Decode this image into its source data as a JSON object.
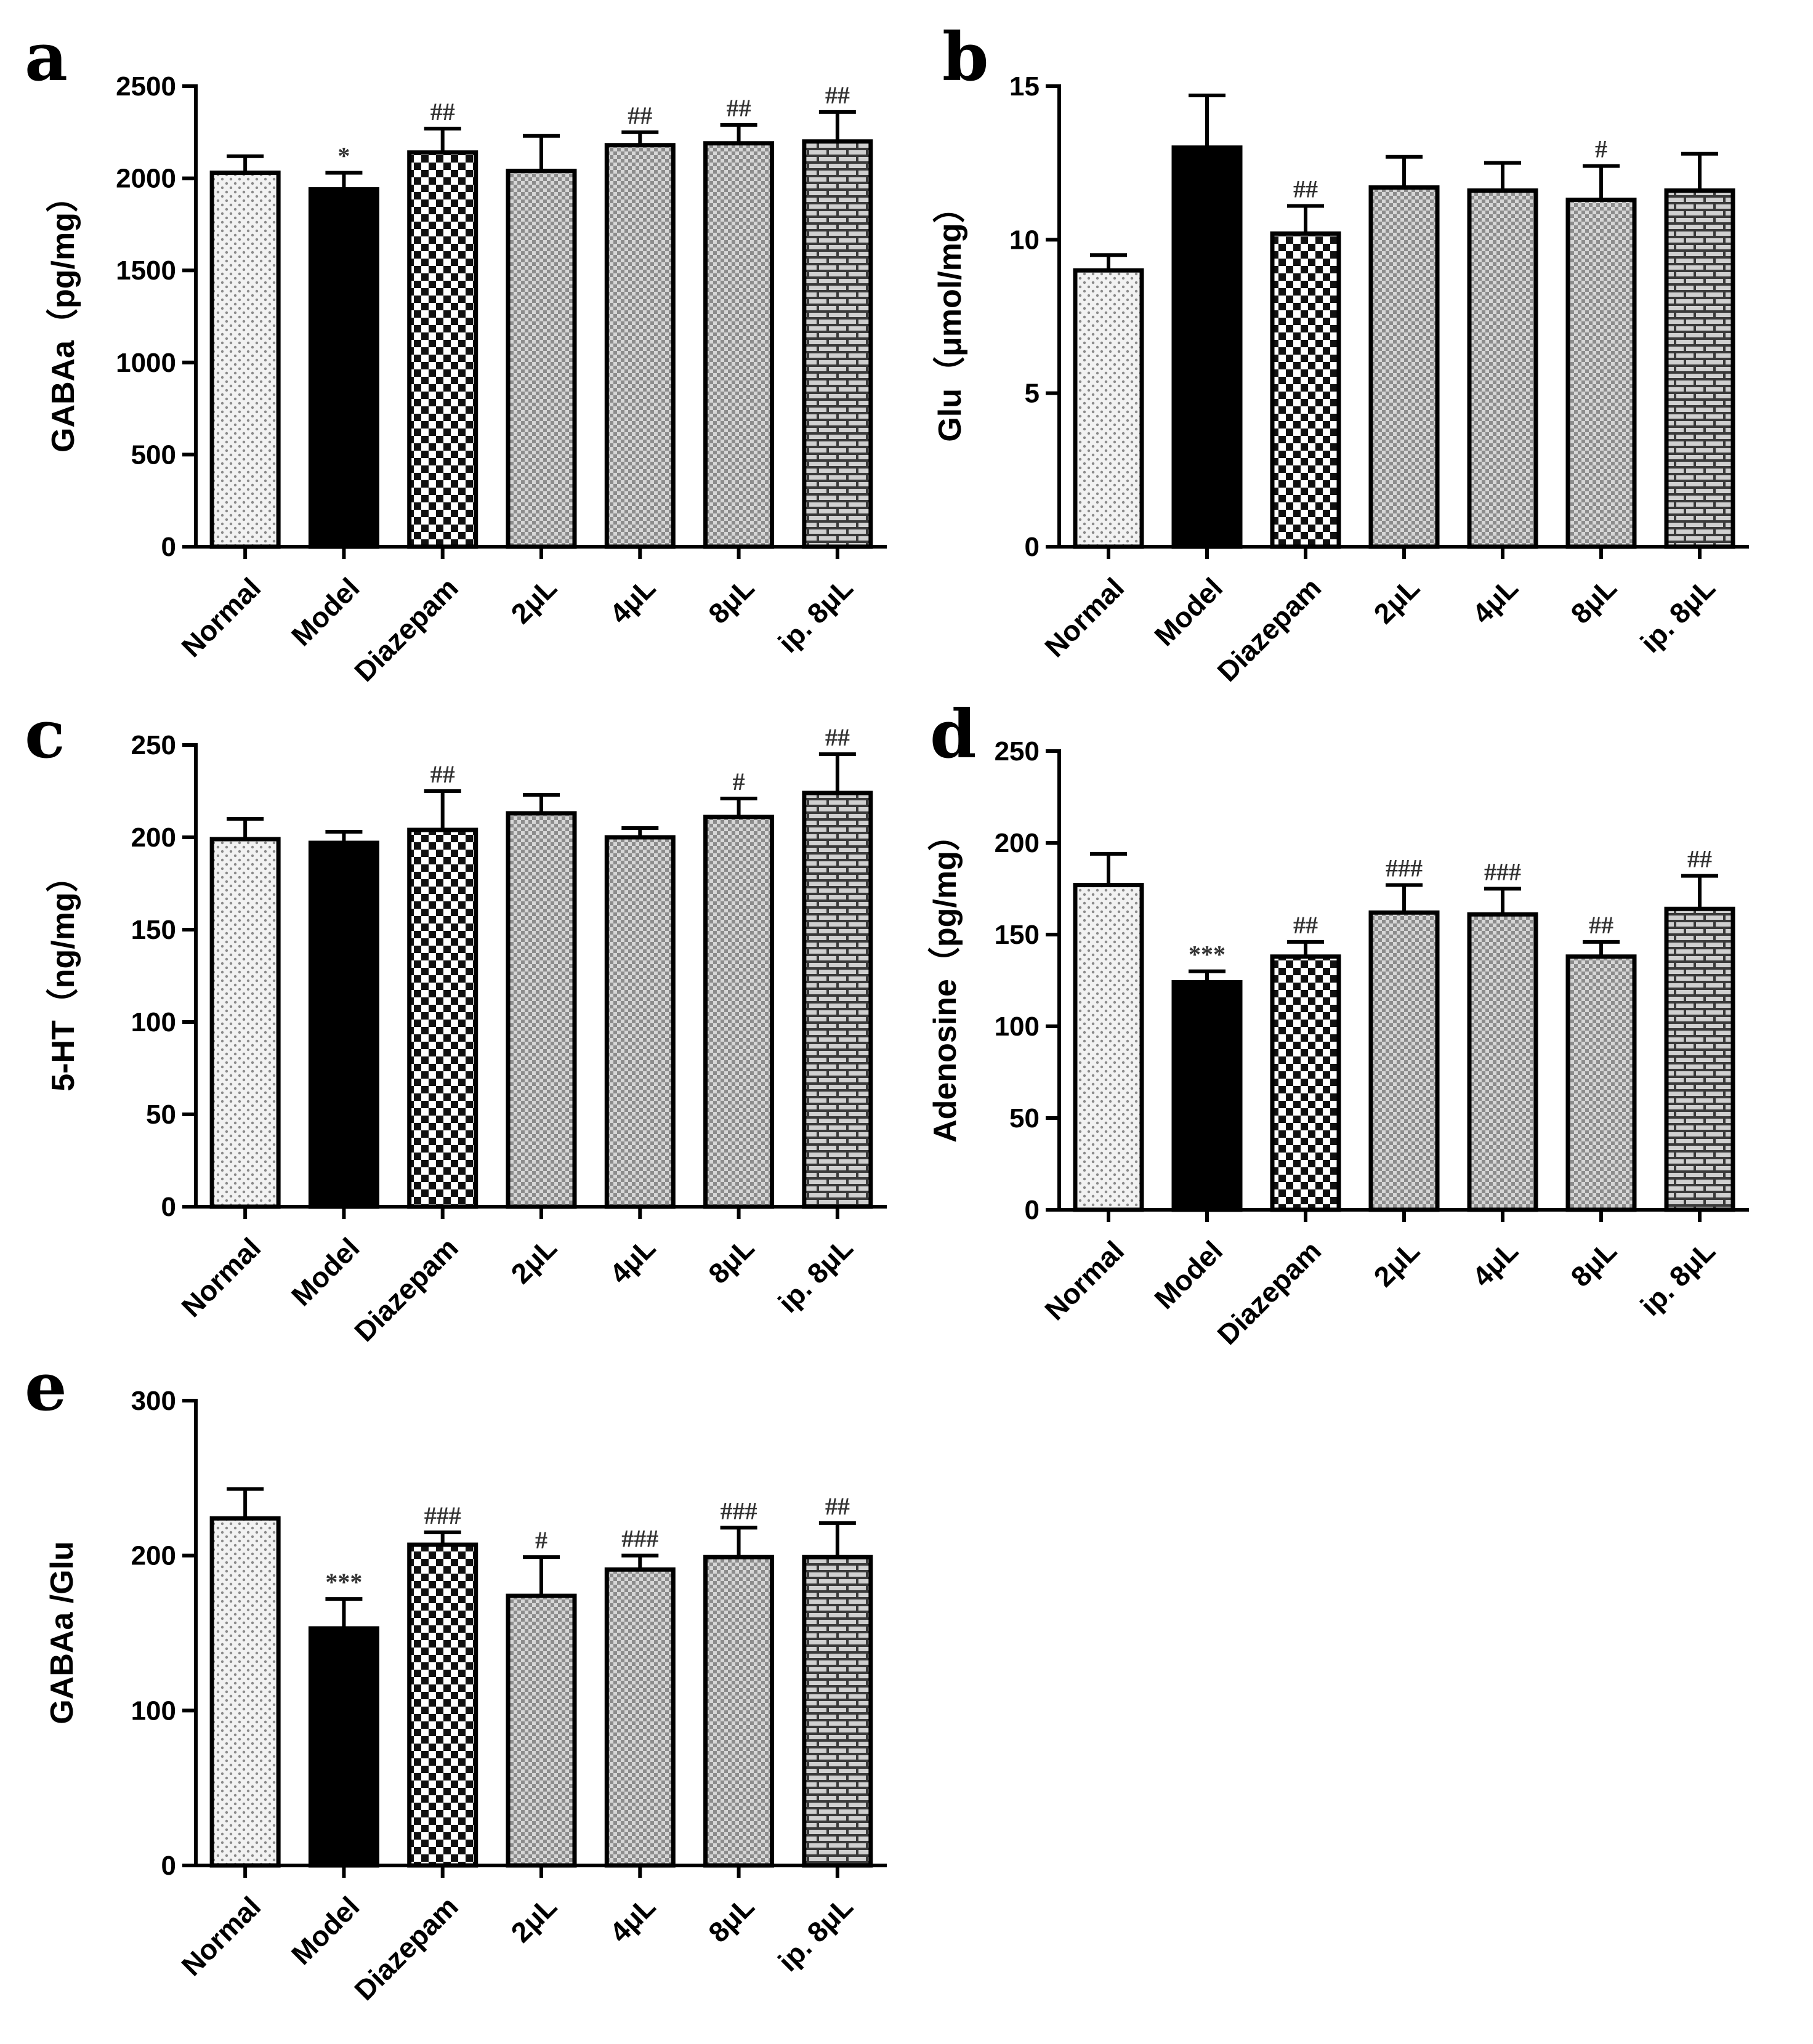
{
  "chart_data": [
    {
      "panel": "a",
      "type": "bar",
      "categories": [
        "Normal",
        "Model",
        "Diazepam",
        "2μL",
        "4μL",
        "8μL",
        "ip. 8μL"
      ],
      "values": [
        2030,
        1940,
        2140,
        2040,
        2180,
        2190,
        2200
      ],
      "errors": [
        90,
        90,
        130,
        190,
        70,
        100,
        160
      ],
      "annotations": [
        "",
        "*",
        "##",
        "",
        "##",
        "##",
        "##"
      ],
      "ylabel": "GABAa（pg/mg）",
      "ylim": [
        0,
        2500
      ],
      "yticks": [
        0,
        500,
        1000,
        1500,
        2000,
        2500
      ]
    },
    {
      "panel": "b",
      "type": "bar",
      "categories": [
        "Normal",
        "Model",
        "Diazepam",
        "2μL",
        "4μL",
        "8μL",
        "ip. 8μL"
      ],
      "values": [
        9.0,
        13.0,
        10.2,
        11.7,
        11.6,
        11.3,
        11.6
      ],
      "errors": [
        0.5,
        1.7,
        0.9,
        1.0,
        0.9,
        1.1,
        1.2
      ],
      "annotations": [
        "",
        "",
        "##",
        "",
        "",
        "#",
        ""
      ],
      "ylabel": "Glu（μmol/mg）",
      "ylim": [
        0,
        15
      ],
      "yticks": [
        0,
        5,
        10,
        15
      ]
    },
    {
      "panel": "c",
      "type": "bar",
      "categories": [
        "Normal",
        "Model",
        "Diazepam",
        "2μL",
        "4μL",
        "8μL",
        "ip. 8μL"
      ],
      "values": [
        199,
        197,
        204,
        213,
        200,
        211,
        224
      ],
      "errors": [
        11,
        6,
        21,
        10,
        5,
        10,
        21
      ],
      "annotations": [
        "",
        "",
        "##",
        "",
        "",
        "#",
        "##"
      ],
      "ylabel": "5-HT（ng/mg）",
      "ylim": [
        0,
        250
      ],
      "yticks": [
        0,
        50,
        100,
        150,
        200,
        250
      ]
    },
    {
      "panel": "d",
      "type": "bar",
      "categories": [
        "Normal",
        "Model",
        "Diazepam",
        "2μL",
        "4μL",
        "8μL",
        "ip. 8μL"
      ],
      "values": [
        177,
        124,
        138,
        162,
        161,
        138,
        164
      ],
      "errors": [
        17,
        6,
        8,
        15,
        14,
        8,
        18
      ],
      "annotations": [
        "",
        "***",
        "##",
        "###",
        "###",
        "##",
        "##"
      ],
      "ylabel": "Adenosine（pg/mg）",
      "ylim": [
        0,
        250
      ],
      "yticks": [
        0,
        50,
        100,
        150,
        200,
        250
      ]
    },
    {
      "panel": "e",
      "type": "bar",
      "categories": [
        "Normal",
        "Model",
        "Diazepam",
        "2μL",
        "4μL",
        "8μL",
        "ip. 8μL"
      ],
      "values": [
        224,
        153,
        207,
        174,
        191,
        199,
        199
      ],
      "errors": [
        19,
        19,
        8,
        25,
        9,
        19,
        22
      ],
      "annotations": [
        "",
        "***",
        "###",
        "#",
        "###",
        "###",
        "##"
      ],
      "ylabel": "GABAa /Glu",
      "ylim": [
        0,
        300
      ],
      "yticks": [
        0,
        100,
        200,
        300
      ]
    }
  ],
  "patterns": [
    "dots",
    "solid",
    "checker",
    "weave",
    "weave",
    "weave",
    "brick"
  ]
}
